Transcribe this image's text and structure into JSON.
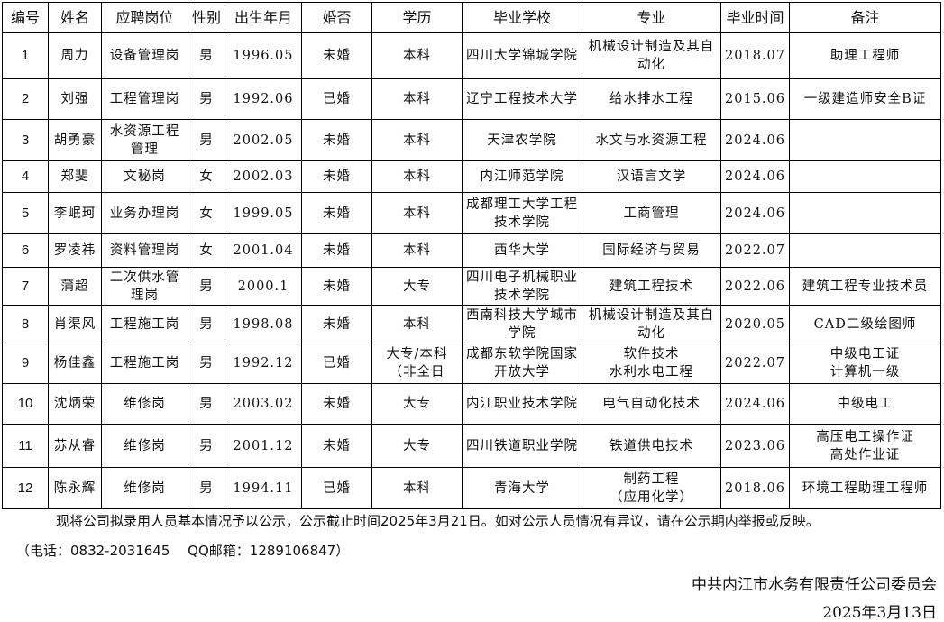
{
  "table": {
    "headers": [
      "编号",
      "姓名",
      "应聘岗位",
      "性别",
      "出生年月",
      "婚否",
      "学历",
      "毕业学校",
      "专业",
      "毕业时间",
      "备注"
    ],
    "rows": [
      [
        "1",
        "周力",
        "设备管理岗",
        "男",
        "1996.05",
        "未婚",
        "本科",
        "四川大学锦城学院",
        "机械设计制造及其自动化",
        "2018.07",
        "助理工程师"
      ],
      [
        "2",
        "刘强",
        "工程管理岗",
        "男",
        "1992.06",
        "已婚",
        "本科",
        "辽宁工程技术大学",
        "给水排水工程",
        "2015.06",
        "一级建造师安全B证"
      ],
      [
        "3",
        "胡勇豪",
        "水资源工程管理",
        "男",
        "2002.05",
        "未婚",
        "本科",
        "天津农学院",
        "水文与水资源工程",
        "2024.06",
        ""
      ],
      [
        "4",
        "郑斐",
        "文秘岗",
        "女",
        "2002.03",
        "未婚",
        "本科",
        "内江师范学院",
        "汉语言文学",
        "2024.06",
        ""
      ],
      [
        "5",
        "李岷珂",
        "业务办理岗",
        "女",
        "1999.05",
        "未婚",
        "本科",
        "成都理工大学工程技术学院",
        "工商管理",
        "2024.06",
        ""
      ],
      [
        "6",
        "罗凌祎",
        "资料管理岗",
        "女",
        "2001.04",
        "未婚",
        "本科",
        "西华大学",
        "国际经济与贸易",
        "2022.07",
        ""
      ],
      [
        "7",
        "蒲超",
        "二次供水管理岗",
        "男",
        "2000.1",
        "未婚",
        "大专",
        "四川电子机械职业技术学院",
        "建筑工程技术",
        "2022.06",
        "建筑工程专业技术员"
      ],
      [
        "8",
        "肖渠风",
        "工程施工岗",
        "男",
        "1998.08",
        "未婚",
        "本科",
        "西南科技大学城市学院",
        "机械设计制造及其自动化",
        "2020.05",
        "CAD二级绘图师"
      ],
      [
        "9",
        "杨佳鑫",
        "工程施工岗",
        "男",
        "1992.12",
        "已婚",
        "大专/本科\n（非全日",
        "成都东软学院国家开放大学",
        "软件技术\n水利水电工程",
        "2022.07",
        "中级电工证\n计算机一级"
      ],
      [
        "10",
        "沈炳荣",
        "维修岗",
        "男",
        "2003.02",
        "未婚",
        "大专",
        "内江职业技术学院",
        "电气自动化技术",
        "2024.06",
        "中级电工"
      ],
      [
        "11",
        "苏从睿",
        "维修岗",
        "男",
        "2001.12",
        "未婚",
        "大专",
        "四川铁道职业学院",
        "铁道供电技术",
        "2023.06",
        "高压电工操作证\n高处作业证"
      ],
      [
        "12",
        "陈永辉",
        "维修岗",
        "男",
        "1994.11",
        "已婚",
        "本科",
        "青海大学",
        "制药工程\n（应用化学）",
        "2018.06",
        "环境工程助理工程师"
      ]
    ]
  },
  "footer": {
    "notice": "现将公司拟录用人员基本情况予以公示，公示截止时间2025年3月21日。如对公示人员情况有异议，请在公示期内举报或反映。",
    "contact": "（电话：0832-2031645　 QQ邮箱：1289106847）",
    "organization": "中共内江市水务有限责任公司委员会",
    "date": "2025年3月13日"
  }
}
